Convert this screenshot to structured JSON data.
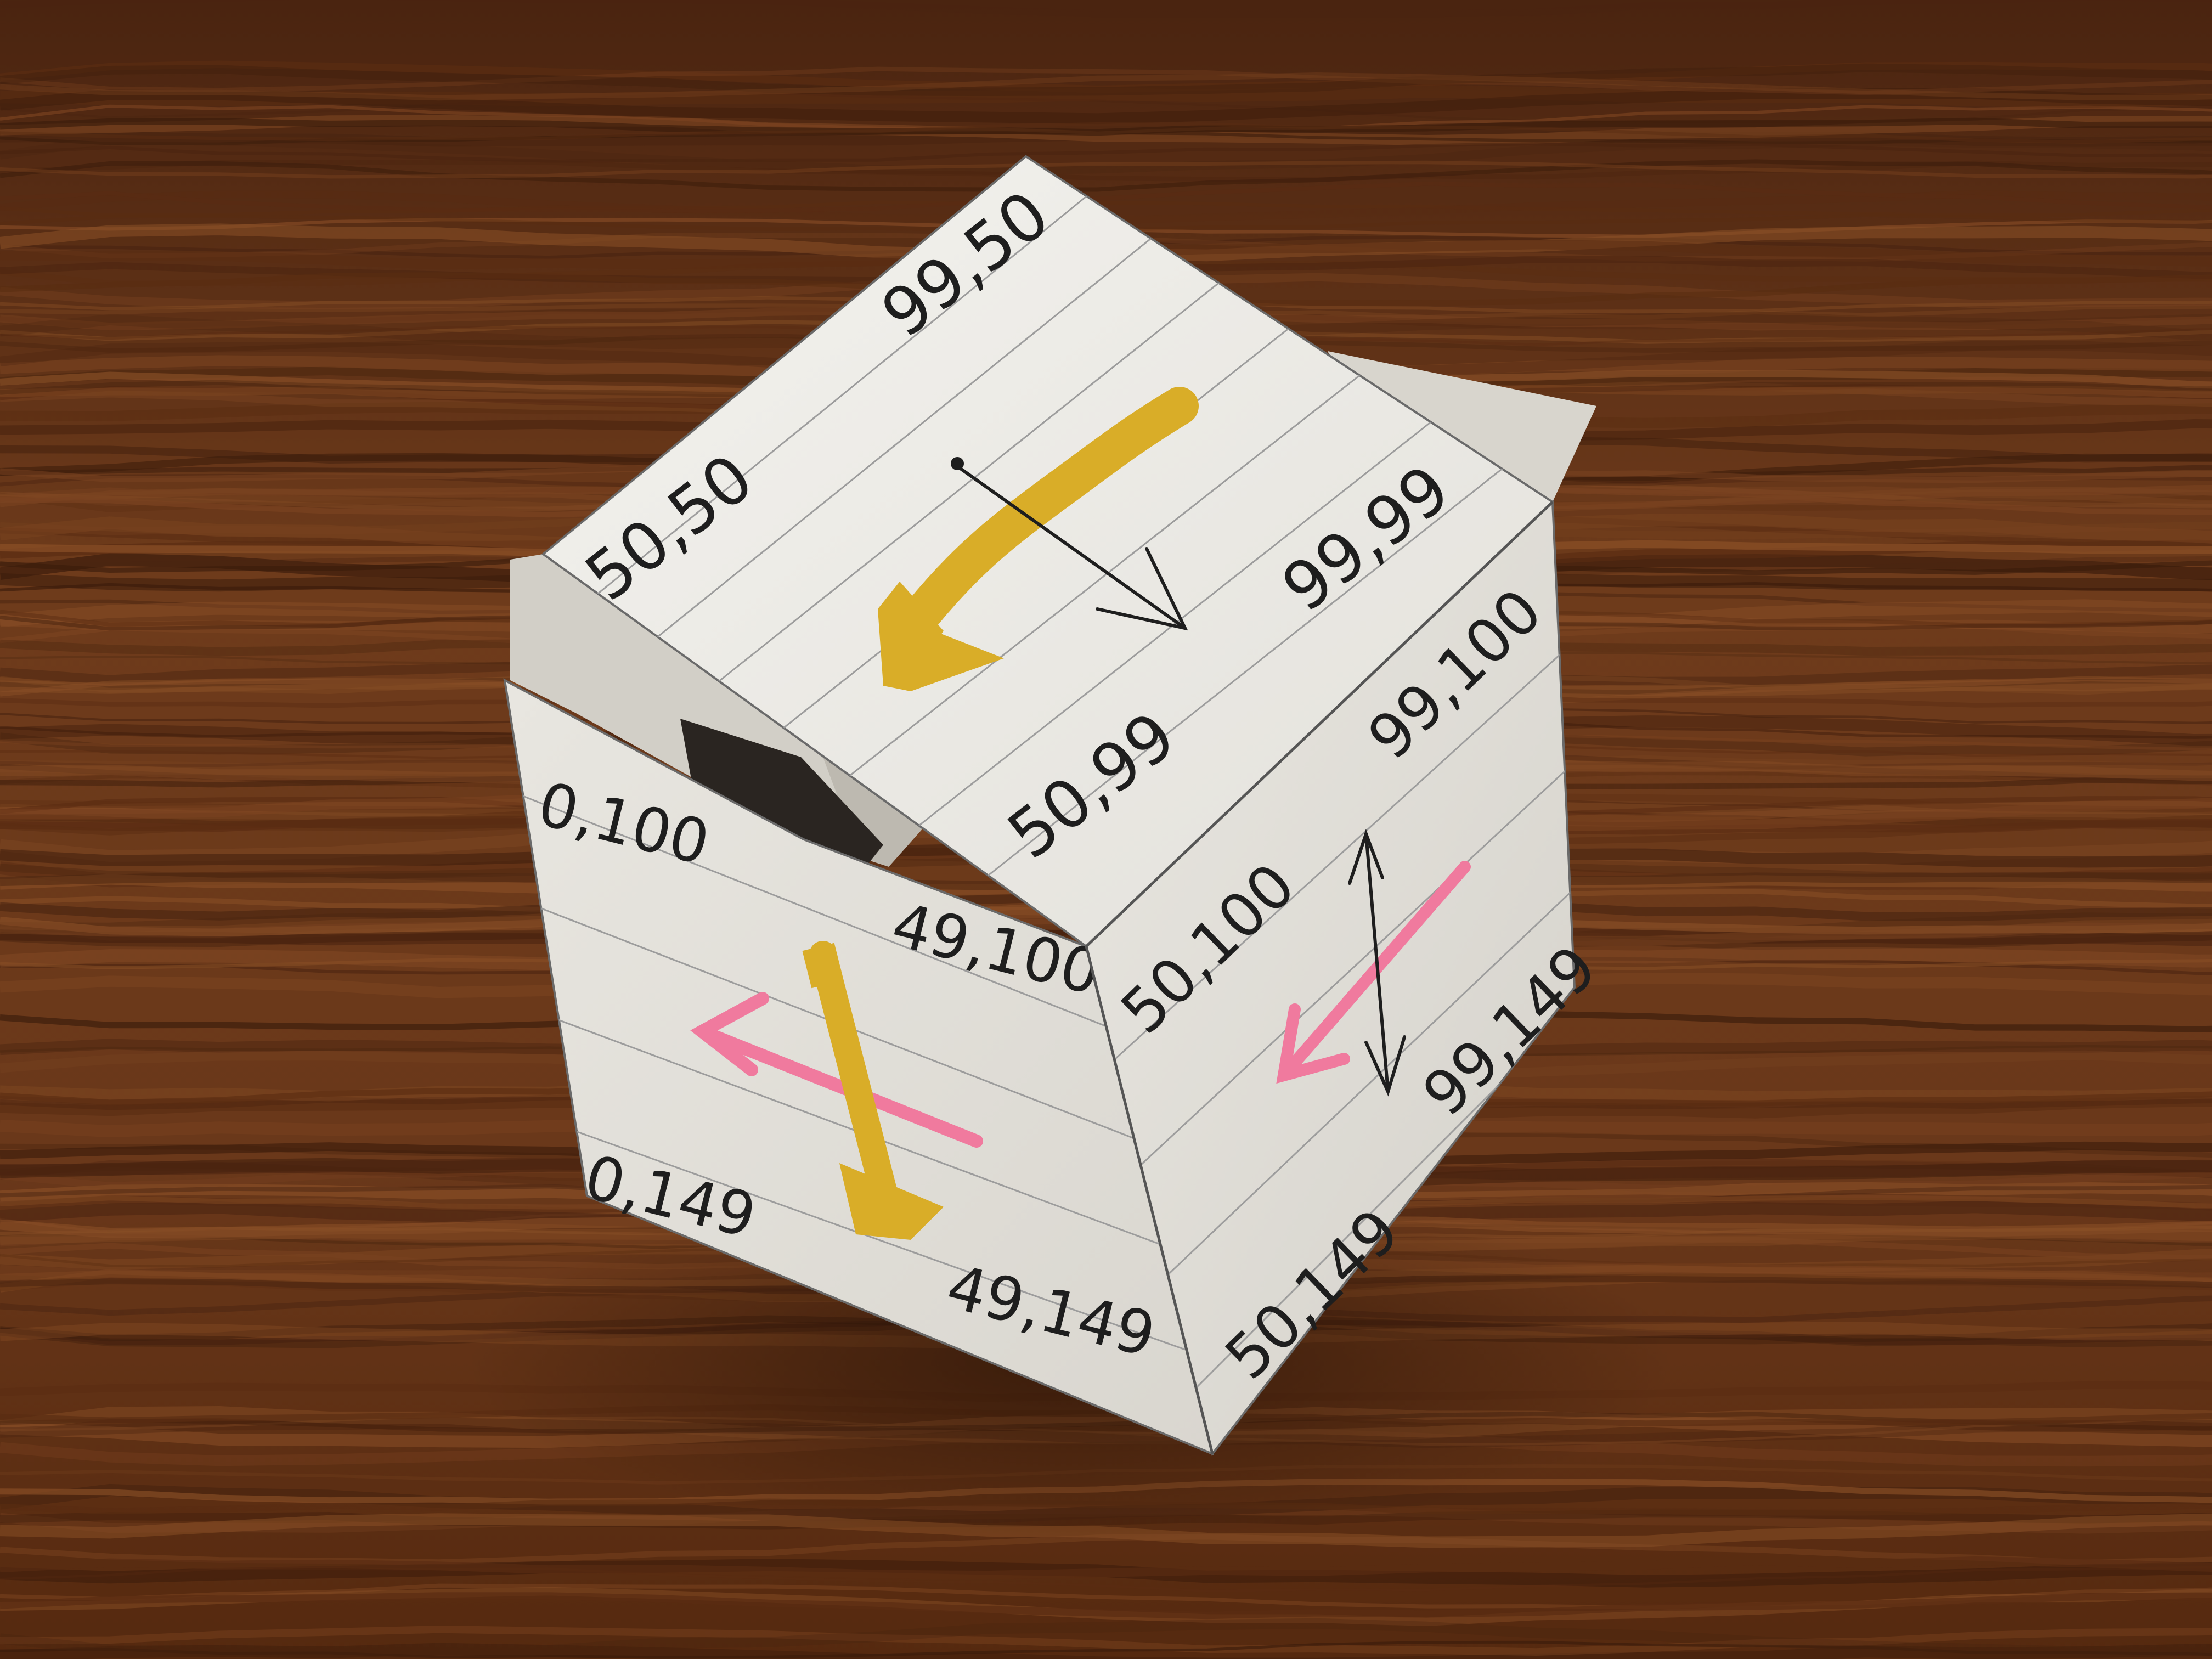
{
  "photo": {
    "surface": "wood-table",
    "colors": {
      "wood_dark": "#3b1c0b",
      "wood_mid": "#6b3a1c",
      "wood_light": "#9a5c2e",
      "paper": "#ebe9e3",
      "paper_shadow": "#cfccc4",
      "ruled_line": "#9c9c9c",
      "ink": "#1e1e1e",
      "yellow_marker": "#d9ad28",
      "pink_marker": "#f07a9e"
    }
  },
  "cube": {
    "top_face": {
      "labels": {
        "back_left": "50,50",
        "back_right": "99,50",
        "front_left": "50,99",
        "front_right": "99,99"
      },
      "arrows": [
        "yellow-arrow",
        "black-arrow"
      ]
    },
    "front_face": {
      "labels": {
        "top_left": "0,100",
        "top_right": "49,100",
        "bottom_left": "0,149",
        "bottom_right": "49,149"
      },
      "arrows": [
        "yellow-arrow",
        "pink-arrow"
      ]
    },
    "right_face": {
      "labels": {
        "top_left": "50,100",
        "top_right": "99,100",
        "bottom_left": "50,149",
        "bottom_right": "99,149"
      },
      "arrows": [
        "pink-arrow",
        "black-double-arrow"
      ]
    }
  }
}
